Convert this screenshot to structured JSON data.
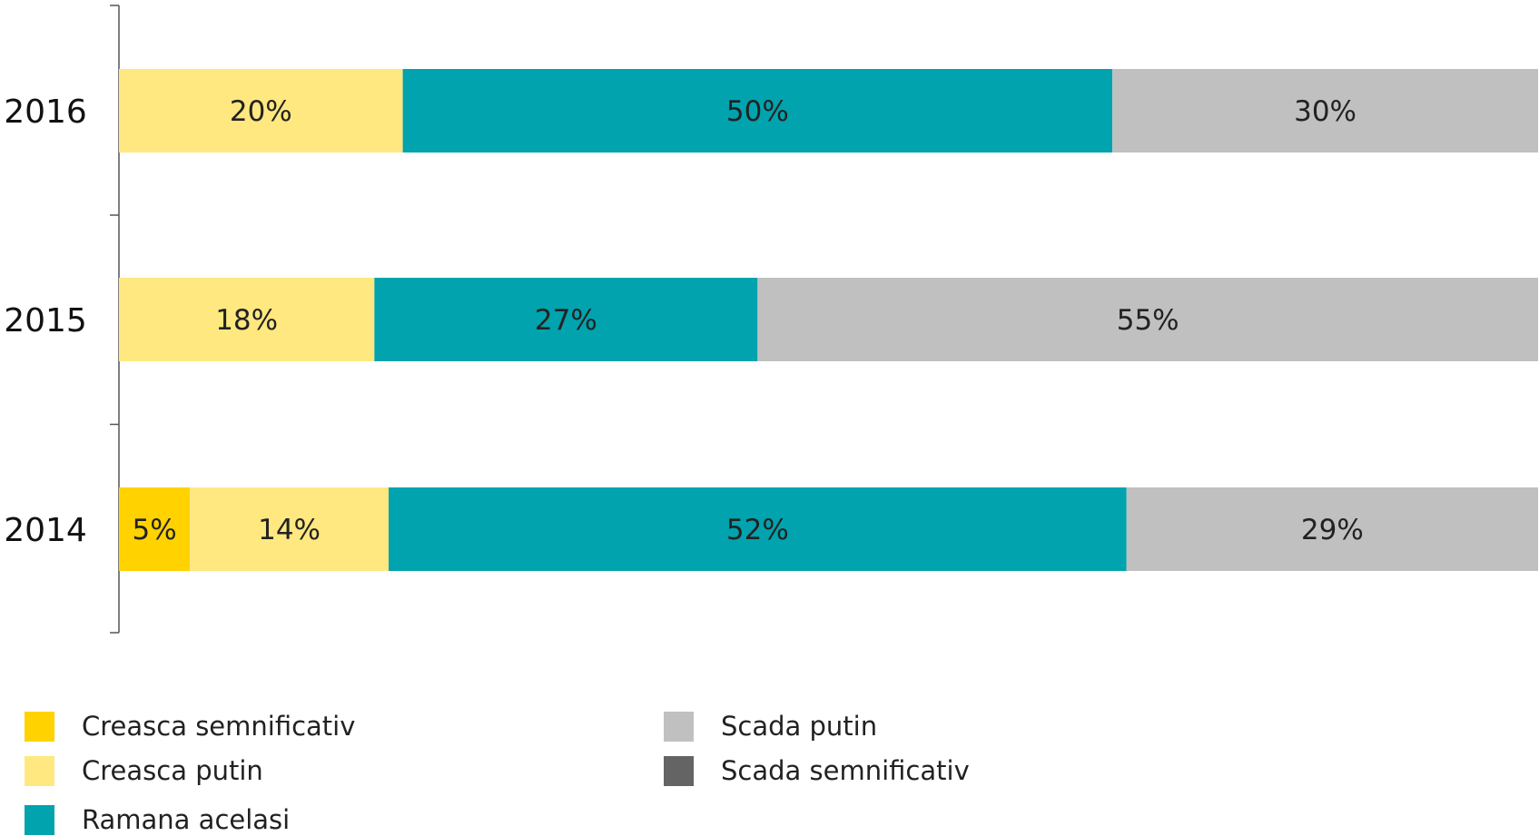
{
  "chart_data": {
    "type": "bar",
    "orientation": "horizontal",
    "stacked": true,
    "categories": [
      "2016",
      "2015",
      "2014"
    ],
    "series": [
      {
        "name": "Creasca semnificativ",
        "color": "#FFD200",
        "values": [
          0,
          0,
          5
        ]
      },
      {
        "name": "Creasca putin",
        "color": "#FFE880",
        "values": [
          20,
          18,
          14
        ]
      },
      {
        "name": "Ramana acelasi",
        "color": "#00A3AE",
        "values": [
          50,
          27,
          52
        ]
      },
      {
        "name": "Scada putin",
        "color": "#C0C0C0",
        "values": [
          30,
          55,
          29
        ]
      },
      {
        "name": "Scada semnificativ",
        "color": "#646464",
        "values": [
          0,
          0,
          0
        ]
      }
    ],
    "data_labels": [
      [
        "",
        "20%",
        "50%",
        "30%",
        ""
      ],
      [
        "",
        "18%",
        "27%",
        "55%",
        ""
      ],
      [
        "5%",
        "14%",
        "52%",
        "29%",
        ""
      ]
    ],
    "xlim": [
      0,
      100
    ],
    "grid": false,
    "legend_position": "bottom"
  },
  "legend": {
    "items": [
      {
        "label": "Creasca semnificativ",
        "color": "#FFD200",
        "icon": "square-swatch"
      },
      {
        "label": "Creasca putin",
        "color": "#FFE880",
        "icon": "square-swatch"
      },
      {
        "label": "Ramana acelasi",
        "color": "#00A3AE",
        "icon": "square-swatch"
      },
      {
        "label": "Scada putin",
        "color": "#C0C0C0",
        "icon": "square-swatch"
      },
      {
        "label": "Scada semnificativ",
        "color": "#646464",
        "icon": "square-swatch"
      }
    ]
  }
}
